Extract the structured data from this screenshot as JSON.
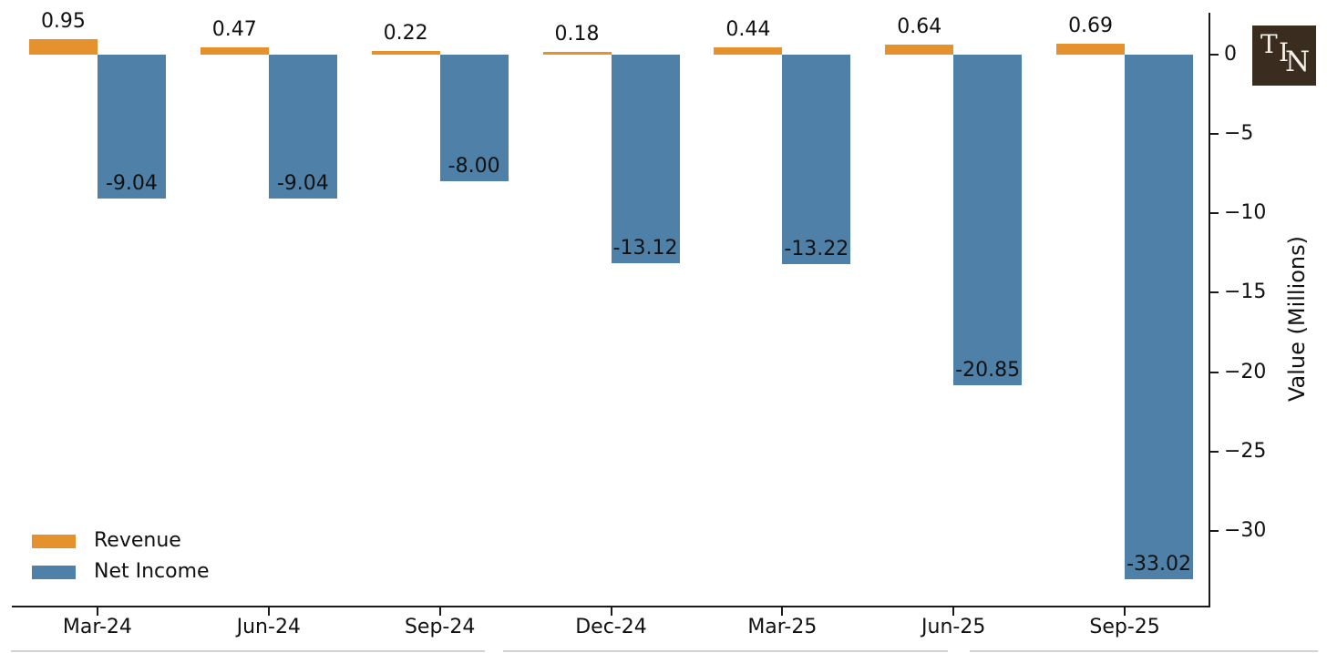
{
  "chart_data": {
    "type": "bar",
    "title": "",
    "categories": [
      "Mar-24",
      "Jun-24",
      "Sep-24",
      "Dec-24",
      "Mar-25",
      "Jun-25",
      "Sep-25"
    ],
    "series": [
      {
        "name": "Revenue",
        "color": "#E5912E",
        "values": [
          0.95,
          0.47,
          0.22,
          0.18,
          0.44,
          0.64,
          0.69
        ],
        "labels": [
          "0.95",
          "0.47",
          "0.22",
          "0.18",
          "0.44",
          "0.64",
          "0.69"
        ]
      },
      {
        "name": "Net Income",
        "color": "#4F81A8",
        "values": [
          -9.04,
          -9.04,
          -8.0,
          -13.12,
          -13.22,
          -20.85,
          -33.02
        ],
        "labels": [
          "-9.04",
          "-9.04",
          "-8.00",
          "-13.12",
          "-13.22",
          "-20.85",
          "-33.02"
        ]
      }
    ],
    "xlabel": "",
    "ylabel": "Value (Millions)",
    "yticks": [
      0,
      -5,
      -10,
      -15,
      -20,
      -25,
      -30
    ],
    "ytick_labels": [
      "0",
      "−5",
      "−10",
      "−15",
      "−20",
      "−25",
      "−30"
    ],
    "ylim": [
      2.6,
      -34.8
    ],
    "grid": false,
    "legend_position": "lower left",
    "y_axis_side": "right"
  },
  "legend": {
    "items": [
      {
        "label": "Revenue",
        "color": "#E5912E"
      },
      {
        "label": "Net Income",
        "color": "#4F81A8"
      }
    ]
  },
  "logo": {
    "letters": [
      "T",
      "I",
      "N"
    ],
    "bg": "#3A2C1E",
    "fg": "#F3F0EA"
  },
  "colors": {
    "revenue": "#E5912E",
    "net_income": "#4F81A8",
    "spine": "#1a1a1a",
    "text": "#111111"
  }
}
